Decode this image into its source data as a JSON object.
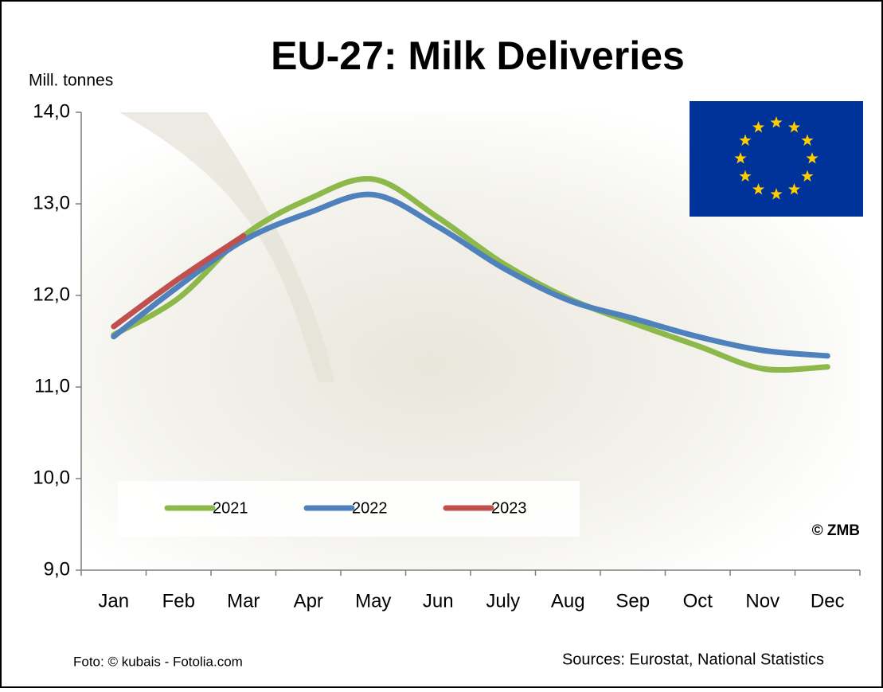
{
  "chart_data": {
    "type": "line",
    "title": "EU-27: Milk Deliveries",
    "y_label": "Mill. tonnes",
    "categories": [
      "Jan",
      "Feb",
      "Mar",
      "Apr",
      "May",
      "Jun",
      "July",
      "Aug",
      "Sep",
      "Oct",
      "Nov",
      "Dec"
    ],
    "series": [
      {
        "name": "2021",
        "color": "#8db84a",
        "values": [
          11.57,
          11.97,
          12.65,
          13.05,
          13.27,
          12.85,
          12.35,
          11.97,
          11.7,
          11.45,
          11.2,
          11.22
        ]
      },
      {
        "name": "2022",
        "color": "#4f81bd",
        "values": [
          11.55,
          12.1,
          12.6,
          12.9,
          13.1,
          12.75,
          12.3,
          11.95,
          11.75,
          11.55,
          11.4,
          11.34
        ]
      },
      {
        "name": "2023",
        "color": "#c0504d",
        "values": [
          11.66,
          12.18,
          12.65,
          null,
          null,
          null,
          null,
          null,
          null,
          null,
          null,
          null
        ]
      }
    ],
    "ylim": [
      9,
      14
    ],
    "yticks": [
      {
        "value": 9,
        "label": "9,0"
      },
      {
        "value": 10,
        "label": "10,0"
      },
      {
        "value": 11,
        "label": "11,0"
      },
      {
        "value": 12,
        "label": "12,0"
      },
      {
        "value": 13,
        "label": "13,0"
      },
      {
        "value": 14,
        "label": "14,0"
      }
    ],
    "copyright": "© ZMB",
    "photo_credit": "Foto: © kubais - Fotolia.com",
    "sources": "Sources: Eurostat,  National Statistics"
  }
}
